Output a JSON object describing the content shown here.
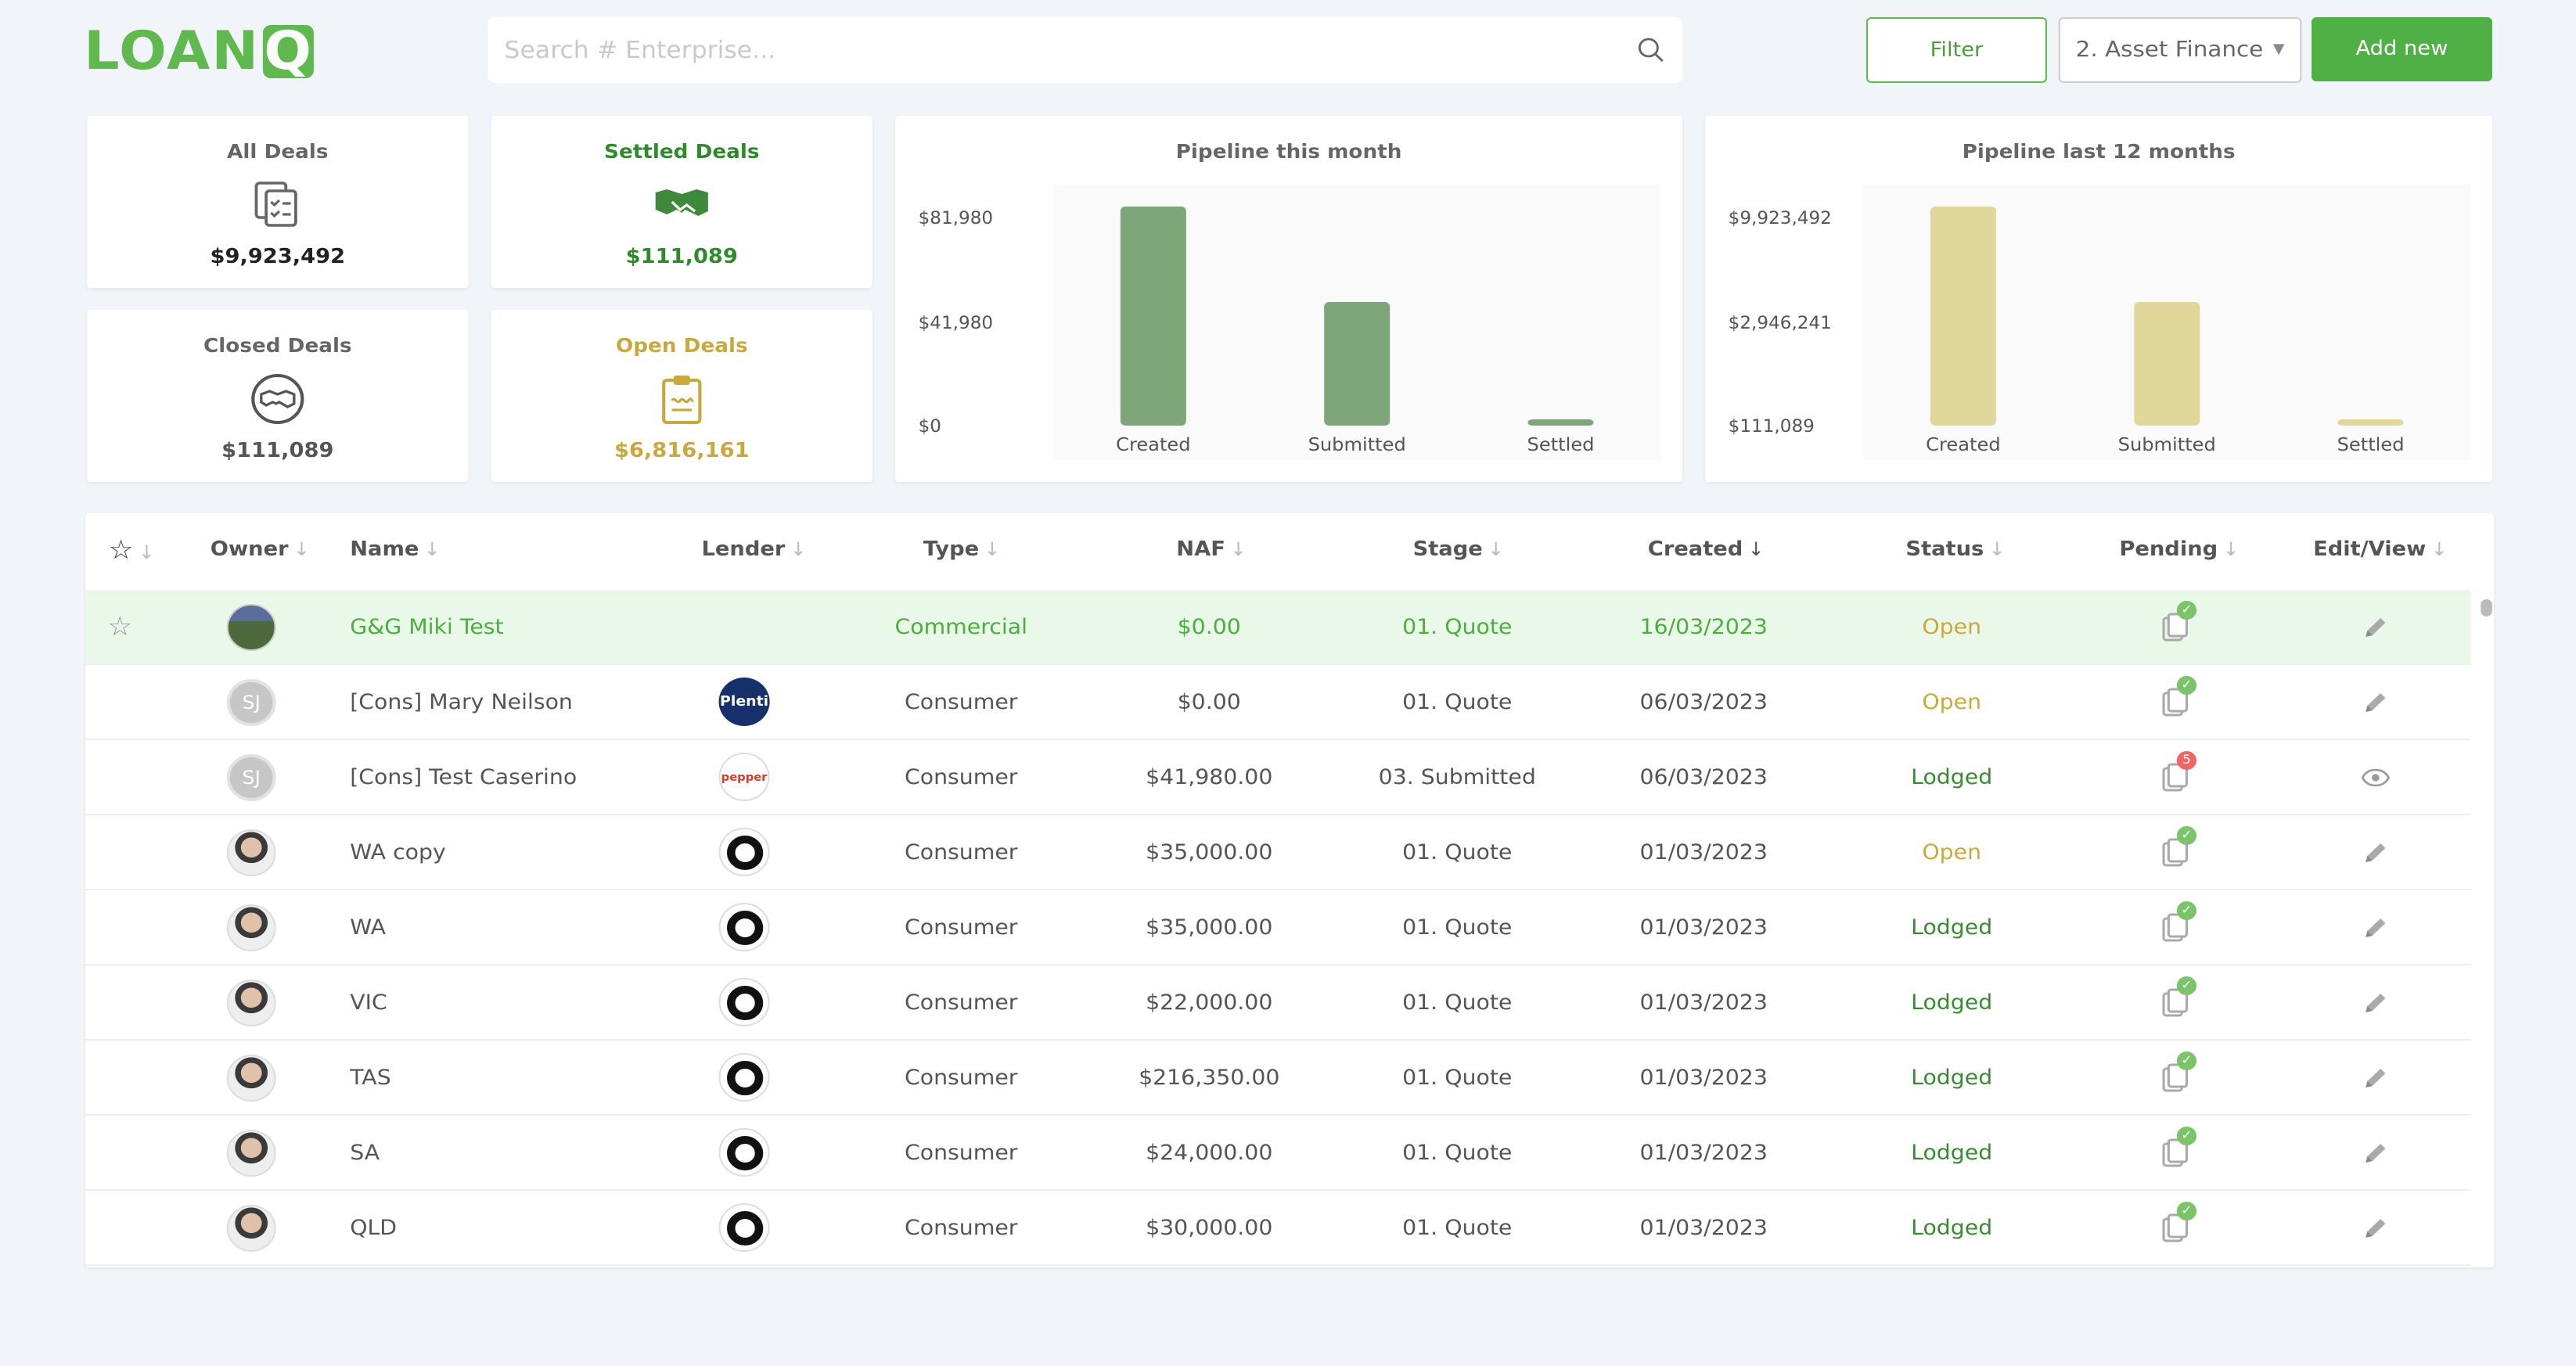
{
  "header": {
    "logo": {
      "main": "LOAN",
      "badge": "Q"
    },
    "search_placeholder": "Search # Enterprise...",
    "filter_label": "Filter",
    "select_value": "2. Asset Finance",
    "add_label": "Add new",
    "colors": {
      "brand": "#5fb94f",
      "accent_gold": "#c9a93e",
      "chart_green": "#7fa57b",
      "chart_gold": "#e1d79a"
    }
  },
  "stats": [
    {
      "title": "All Deals",
      "value": "$9,923,492",
      "icon": "documents-check-icon",
      "color": "#222222"
    },
    {
      "title": "Settled Deals",
      "value": "$111,089",
      "icon": "handshake-icon",
      "color": "#2f8a2b"
    },
    {
      "title": "Closed Deals",
      "value": "$111,089",
      "icon": "handshake-circle-icon",
      "color": "#555555"
    },
    {
      "title": "Open Deals",
      "value": "$6,816,161",
      "icon": "clipboard-icon",
      "color": "#c9a93e"
    }
  ],
  "chart_data": [
    {
      "type": "bar",
      "title": "Pipeline this month",
      "categories": [
        "Created",
        "Submitted",
        "Settled"
      ],
      "values": [
        81980,
        41980,
        0
      ],
      "yticks": [
        "$81,980",
        "$41,980",
        "$0"
      ],
      "ylim": [
        0,
        81980
      ],
      "color": "#7fa57b"
    },
    {
      "type": "bar",
      "title": "Pipeline last 12 months",
      "categories": [
        "Created",
        "Submitted",
        "Settled"
      ],
      "values": [
        9923492,
        2946241,
        111089
      ],
      "yticks": [
        "$9,923,492",
        "$2,946,241",
        "$111,089"
      ],
      "ylim": [
        111089,
        9923492
      ],
      "color": "#e1d79a"
    }
  ],
  "table": {
    "columns": [
      "Owner",
      "Name",
      "Lender",
      "Type",
      "NAF",
      "Stage",
      "Created",
      "Status",
      "Pending",
      "Edit/View"
    ],
    "rows": [
      {
        "owner": "",
        "owner_kind": "land",
        "name": "G&G Miki Test",
        "lender": "",
        "lender_kind": "none",
        "type": "Commercial",
        "naf": "$0.00",
        "stage": "01. Quote",
        "created": "16/03/2023",
        "status": "Open",
        "pending": "check",
        "action": "edit"
      },
      {
        "owner": "SJ",
        "owner_kind": "initials",
        "name": "[Cons] Mary Neilson",
        "lender": "Plenti",
        "lender_kind": "plenti",
        "type": "Consumer",
        "naf": "$0.00",
        "stage": "01. Quote",
        "created": "06/03/2023",
        "status": "Open",
        "pending": "check",
        "action": "edit"
      },
      {
        "owner": "SJ",
        "owner_kind": "initials",
        "name": "[Cons] Test Caserino",
        "lender": "pepper",
        "lender_kind": "pepper",
        "type": "Consumer",
        "naf": "$41,980.00",
        "stage": "03. Submitted",
        "created": "06/03/2023",
        "status": "Lodged",
        "pending": "5",
        "action": "view"
      },
      {
        "owner": "",
        "owner_kind": "photo",
        "name": "WA copy",
        "lender": "",
        "lender_kind": "ring",
        "type": "Consumer",
        "naf": "$35,000.00",
        "stage": "01. Quote",
        "created": "01/03/2023",
        "status": "Open",
        "pending": "check",
        "action": "edit"
      },
      {
        "owner": "",
        "owner_kind": "photo",
        "name": "WA",
        "lender": "",
        "lender_kind": "ring",
        "type": "Consumer",
        "naf": "$35,000.00",
        "stage": "01. Quote",
        "created": "01/03/2023",
        "status": "Lodged",
        "pending": "check",
        "action": "edit"
      },
      {
        "owner": "",
        "owner_kind": "photo",
        "name": "VIC",
        "lender": "",
        "lender_kind": "ring",
        "type": "Consumer",
        "naf": "$22,000.00",
        "stage": "01. Quote",
        "created": "01/03/2023",
        "status": "Lodged",
        "pending": "check",
        "action": "edit"
      },
      {
        "owner": "",
        "owner_kind": "photo",
        "name": "TAS",
        "lender": "",
        "lender_kind": "ring",
        "type": "Consumer",
        "naf": "$216,350.00",
        "stage": "01. Quote",
        "created": "01/03/2023",
        "status": "Lodged",
        "pending": "check",
        "action": "edit"
      },
      {
        "owner": "",
        "owner_kind": "photo",
        "name": "SA",
        "lender": "",
        "lender_kind": "ring",
        "type": "Consumer",
        "naf": "$24,000.00",
        "stage": "01. Quote",
        "created": "01/03/2023",
        "status": "Lodged",
        "pending": "check",
        "action": "edit"
      },
      {
        "owner": "",
        "owner_kind": "photo",
        "name": "QLD",
        "lender": "",
        "lender_kind": "ring",
        "type": "Consumer",
        "naf": "$30,000.00",
        "stage": "01. Quote",
        "created": "01/03/2023",
        "status": "Lodged",
        "pending": "check",
        "action": "edit"
      }
    ]
  }
}
